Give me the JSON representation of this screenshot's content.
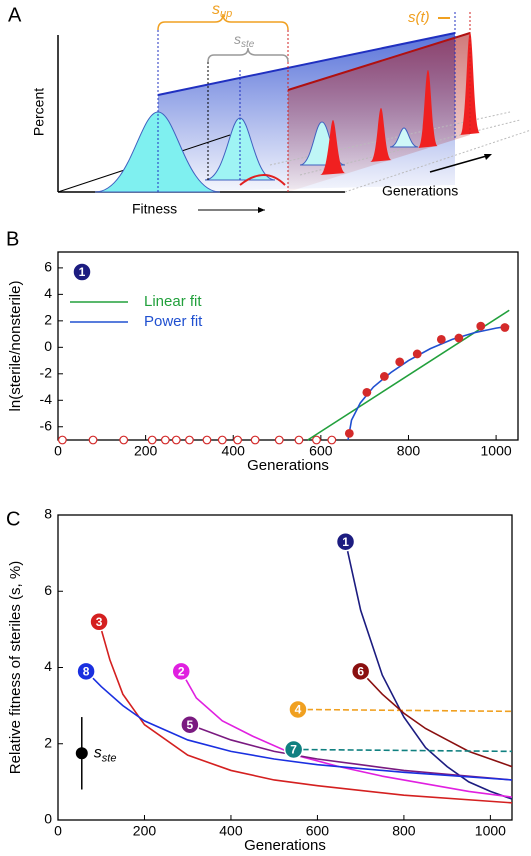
{
  "diagram": {
    "panel": "A",
    "s_up": {
      "main": "s",
      "sub": "up"
    },
    "s_ste": {
      "main": "s",
      "sub": "ste"
    },
    "s_t": "s(t)",
    "ylabel": "Percent",
    "xlabel": "Fitness",
    "zlabel": "Generations"
  },
  "chart_data": [
    {
      "type": "scatter",
      "panel": "B",
      "badge": "1",
      "xlabel": "Generations",
      "ylabel": "ln(sterile/nonsterile)",
      "xlim": [
        0,
        1050
      ],
      "ylim": [
        -7,
        7.2
      ],
      "xticks": [
        0,
        200,
        400,
        600,
        800,
        1000
      ],
      "yticks": [
        -6,
        -4,
        -2,
        0,
        2,
        4,
        6
      ],
      "legend": "upper left",
      "series": [
        {
          "color": "#d42a2a",
          "marker": "open",
          "x": [
            10,
            80,
            150,
            215,
            245,
            270,
            300,
            340,
            375,
            410,
            450,
            505,
            550,
            590,
            625
          ],
          "values": [
            -7,
            -7,
            -7,
            -7,
            -7,
            -7,
            -7,
            -7,
            -7,
            -7,
            -7,
            -7,
            -7,
            -7,
            -7
          ]
        },
        {
          "name": "Linear fit",
          "color": "#22a03c",
          "x": [
            570,
            1030
          ],
          "values": [
            -7,
            2.8
          ]
        },
        {
          "name": "Power fit",
          "color": "#2050d0",
          "x": [
            662,
            670,
            690,
            720,
            760,
            800,
            850,
            900,
            950,
            1000,
            1030
          ],
          "values": [
            -7,
            -5.5,
            -4.2,
            -3.0,
            -1.9,
            -1.0,
            -0.1,
            0.6,
            1.1,
            1.45,
            1.6
          ]
        },
        {
          "color": "#d42a2a",
          "marker": "filled",
          "x": [
            665,
            705,
            745,
            780,
            820,
            875,
            915,
            965,
            1020
          ],
          "values": [
            -6.5,
            -3.4,
            -2.2,
            -1.1,
            -0.5,
            0.6,
            0.7,
            1.6,
            1.5
          ]
        }
      ]
    },
    {
      "type": "line",
      "panel": "C",
      "xlabel": "Generations",
      "ylabel": "Relative fitness of steriles (s, %)",
      "xlim": [
        0,
        1050
      ],
      "ylim": [
        0,
        8
      ],
      "xticks": [
        0,
        200,
        400,
        600,
        800,
        1000
      ],
      "yticks": [
        0,
        2,
        4,
        6,
        8
      ],
      "error_point": {
        "x": 55,
        "y": 1.75,
        "error": 0.95,
        "label": "s",
        "label_sub": "ste"
      },
      "series": [
        {
          "name": "1",
          "color": "#1c1c80",
          "x": [
            665,
            700,
            750,
            800,
            850,
            900,
            950,
            1000,
            1050
          ],
          "values": [
            7.3,
            5.5,
            3.8,
            2.7,
            1.9,
            1.4,
            1.0,
            0.75,
            0.55
          ]
        },
        {
          "name": "2",
          "color": "#e020e0",
          "x": [
            285,
            320,
            380,
            450,
            550,
            650,
            750,
            850,
            950,
            1050
          ],
          "values": [
            3.9,
            3.2,
            2.6,
            2.2,
            1.7,
            1.4,
            1.15,
            0.95,
            0.75,
            0.6
          ]
        },
        {
          "name": "3",
          "color": "#d42020",
          "x": [
            95,
            120,
            150,
            200,
            300,
            400,
            500,
            600,
            800,
            1050
          ],
          "values": [
            5.2,
            4.2,
            3.3,
            2.5,
            1.7,
            1.3,
            1.05,
            0.9,
            0.65,
            0.45
          ]
        },
        {
          "name": "4",
          "color": "#f0a020",
          "dashed": true,
          "x": [
            555,
            1050
          ],
          "values": [
            2.9,
            2.85
          ]
        },
        {
          "name": "5",
          "color": "#7a1a80",
          "x": [
            305,
            400,
            500,
            600,
            700,
            800,
            900,
            1050
          ],
          "values": [
            2.5,
            2.1,
            1.8,
            1.6,
            1.45,
            1.3,
            1.2,
            1.05
          ]
        },
        {
          "name": "6",
          "color": "#8a1010",
          "x": [
            700,
            750,
            800,
            850,
            900,
            950,
            1000,
            1050
          ],
          "values": [
            3.9,
            3.3,
            2.8,
            2.4,
            2.1,
            1.8,
            1.6,
            1.4
          ]
        },
        {
          "name": "7",
          "color": "#108080",
          "dashed": true,
          "x": [
            545,
            1050
          ],
          "values": [
            1.85,
            1.8
          ]
        },
        {
          "name": "8",
          "color": "#1a30e0",
          "x": [
            65,
            100,
            150,
            200,
            300,
            400,
            500,
            600,
            700,
            800,
            1050
          ],
          "values": [
            3.9,
            3.5,
            3.0,
            2.6,
            2.1,
            1.8,
            1.6,
            1.45,
            1.35,
            1.25,
            1.05
          ]
        }
      ]
    }
  ]
}
